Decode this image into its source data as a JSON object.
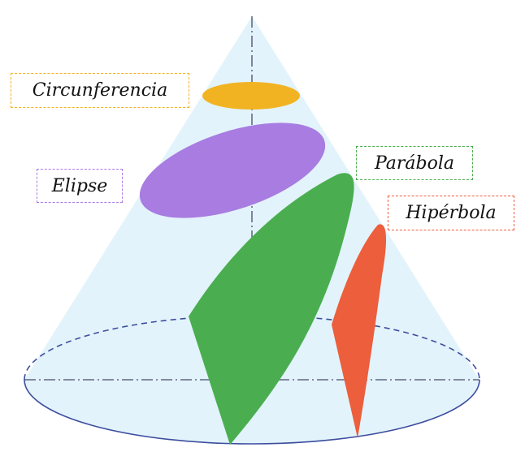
{
  "labels": {
    "circunferencia": "Circunferencia",
    "elipse": "Elipse",
    "parabola": "Parábola",
    "hiperbola": "Hipérbola"
  },
  "colors": {
    "cone_fill": "#e2f3fb",
    "base_outline": "#3d4e9f",
    "axis_line": "#4a4a6a",
    "circunferencia": "#f2b323",
    "elipse": "#a87ce0",
    "parabola": "#4aae50",
    "hiperbola": "#ec5e3c"
  }
}
